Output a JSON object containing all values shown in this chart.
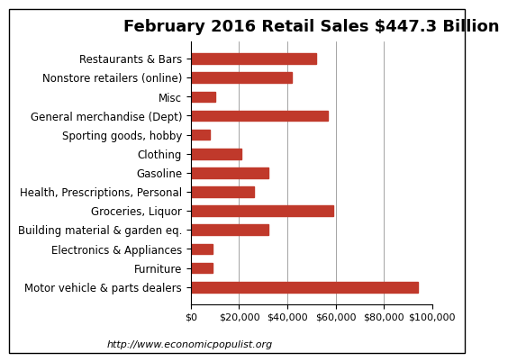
{
  "title": "February 2016 Retail Sales $447.3 Billion",
  "categories": [
    "Restaurants & Bars",
    "Nonstore retailers (online)",
    "Misc",
    "General merchandise (Dept)",
    "Sporting goods, hobby",
    "Clothing",
    "Gasoline",
    "Health, Prescriptions, Personal",
    "Groceries, Liquor",
    "Building material & garden eq.",
    "Electronics & Appliances",
    "Furniture",
    "Motor vehicle & parts dealers"
  ],
  "values": [
    52000,
    42000,
    10000,
    57000,
    8000,
    21000,
    32000,
    26000,
    59000,
    32000,
    9000,
    9000,
    94000
  ],
  "bar_color": "#C0392B",
  "xlim": [
    0,
    100000
  ],
  "xticks": [
    0,
    20000,
    40000,
    60000,
    80000,
    100000
  ],
  "footnote": "http://www.economicpopulist.org",
  "background_color": "#ffffff",
  "title_fontsize": 13,
  "tick_fontsize": 8,
  "label_fontsize": 8.5,
  "footnote_fontsize": 8
}
